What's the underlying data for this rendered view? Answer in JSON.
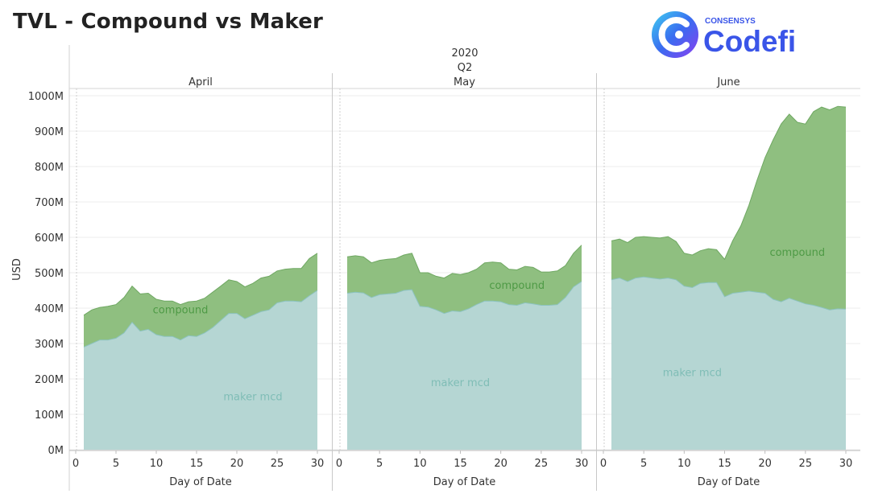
{
  "title": "TVL - Compound vs Maker",
  "logo": {
    "small_text": "CONSENSYS",
    "big_text": "Codefi"
  },
  "colors": {
    "compound_fill": "#8fbf80",
    "compound_line": "#6fa862",
    "maker_fill": "#b5d6d3",
    "maker_line": "#8cc3bf",
    "compound_label": "#4e9a45",
    "maker_label": "#7fbdb6"
  },
  "chart_data": {
    "type": "area",
    "stacked": true,
    "header": {
      "year": "2020",
      "quarter": "Q2"
    },
    "ylabel": "USD",
    "xlabel": "Day of Date",
    "ylim": [
      0,
      1000
    ],
    "yticks": [
      "0M",
      "100M",
      "200M",
      "300M",
      "400M",
      "500M",
      "600M",
      "700M",
      "800M",
      "900M",
      "1000M"
    ],
    "xticks": [
      "0",
      "5",
      "10",
      "15",
      "20",
      "25",
      "30"
    ],
    "series_names": [
      "maker mcd",
      "compound"
    ],
    "panels": [
      {
        "month": "April",
        "days": [
          1,
          2,
          3,
          4,
          5,
          6,
          7,
          8,
          9,
          10,
          11,
          12,
          13,
          14,
          15,
          16,
          17,
          18,
          19,
          20,
          21,
          22,
          23,
          24,
          25,
          26,
          27,
          28,
          29,
          30
        ],
        "maker_mcd": [
          290,
          300,
          310,
          310,
          315,
          330,
          360,
          335,
          340,
          325,
          320,
          320,
          310,
          322,
          320,
          330,
          345,
          365,
          385,
          385,
          370,
          380,
          390,
          395,
          415,
          420,
          420,
          418,
          435,
          450
        ],
        "total": [
          380,
          395,
          402,
          405,
          410,
          430,
          462,
          440,
          442,
          425,
          420,
          420,
          410,
          418,
          420,
          428,
          445,
          462,
          480,
          475,
          460,
          470,
          485,
          490,
          505,
          510,
          512,
          512,
          540,
          555
        ],
        "compound_label_pos": [
          13,
          385
        ],
        "maker_label_pos": [
          22,
          140
        ]
      },
      {
        "month": "May",
        "days": [
          1,
          2,
          3,
          4,
          5,
          6,
          7,
          8,
          9,
          10,
          11,
          12,
          13,
          14,
          15,
          16,
          17,
          18,
          19,
          20,
          21,
          22,
          23,
          24,
          25,
          26,
          27,
          28,
          29,
          30
        ],
        "maker_mcd": [
          442,
          445,
          443,
          430,
          438,
          440,
          442,
          450,
          452,
          405,
          403,
          395,
          385,
          392,
          390,
          398,
          410,
          420,
          420,
          418,
          410,
          408,
          415,
          412,
          408,
          408,
          410,
          430,
          460,
          475
        ],
        "total": [
          545,
          548,
          545,
          528,
          535,
          538,
          540,
          550,
          555,
          500,
          500,
          490,
          485,
          498,
          495,
          500,
          510,
          528,
          530,
          528,
          510,
          508,
          518,
          515,
          502,
          502,
          505,
          520,
          555,
          578
        ],
        "compound_label_pos": [
          22,
          455
        ],
        "maker_label_pos": [
          15,
          180
        ]
      },
      {
        "month": "June",
        "days": [
          1,
          2,
          3,
          4,
          5,
          6,
          7,
          8,
          9,
          10,
          11,
          12,
          13,
          14,
          15,
          16,
          17,
          18,
          19,
          20,
          21,
          22,
          23,
          24,
          25,
          26,
          27,
          28,
          29,
          30
        ],
        "maker_mcd": [
          480,
          485,
          475,
          485,
          488,
          485,
          482,
          485,
          480,
          462,
          458,
          470,
          472,
          472,
          432,
          442,
          445,
          448,
          445,
          442,
          425,
          418,
          428,
          420,
          412,
          408,
          402,
          395,
          398,
          397
        ],
        "total": [
          590,
          595,
          585,
          600,
          602,
          600,
          598,
          602,
          588,
          555,
          550,
          562,
          568,
          565,
          538,
          590,
          632,
          690,
          760,
          825,
          875,
          920,
          948,
          925,
          920,
          955,
          968,
          960,
          970,
          968
        ],
        "compound_label_pos": [
          24,
          548
        ],
        "maker_label_pos": [
          11,
          208
        ]
      }
    ]
  }
}
